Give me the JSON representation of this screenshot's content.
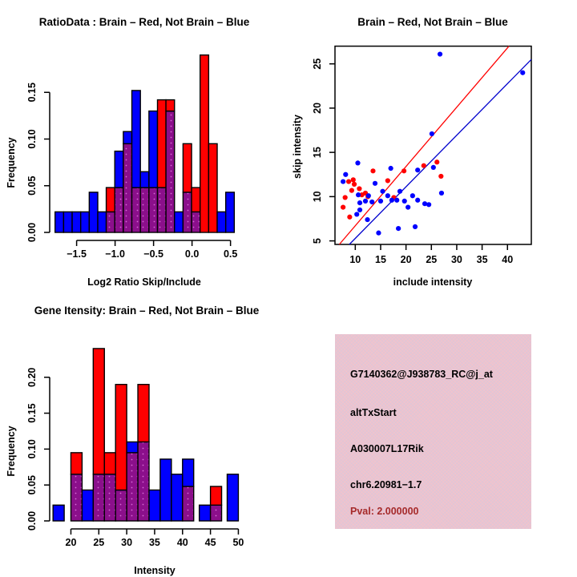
{
  "colors": {
    "red": "#FF0000",
    "blue": "#0000FF",
    "purple": "#8B0F8B",
    "purple_dot": "#D668D6",
    "blue_fit_line": "#0000CD",
    "red_fit_line": "#FF0000",
    "axis": "#000000",
    "info_box_bg": "#F2C3CC",
    "pval_text": "#A52A2A"
  },
  "panels": {
    "top_left": {
      "title": "RatioData : Brain – Red, Not Brain – Blue",
      "xlabel": "Log2 Ratio Skip/Include",
      "ylabel": "Frequency"
    },
    "top_right": {
      "title": "Brain – Red, Not Brain – Blue",
      "xlabel": "include intensity",
      "ylabel": "skip intensity"
    },
    "bottom_left": {
      "title": "Gene Itensity: Brain – Red, Not Brain – Blue",
      "xlabel": "Intensity",
      "ylabel": "Frequency"
    },
    "bottom_right": {
      "line1": "G7140362@J938783_RC@j_at",
      "line2": "altTxStart",
      "line3": "A030007L17Rik",
      "line4": "chr6.20981−1.7",
      "line5": "Pval: 2.000000"
    }
  },
  "chart_data": [
    {
      "panel": "tl",
      "type": "histogram",
      "title": "RatioData : Brain – Red, Not Brain – Blue",
      "xlabel": "Log2 Ratio Skip/Include",
      "ylabel": "Frequency",
      "xlim": [
        -1.85,
        0.66
      ],
      "ylim": [
        0,
        0.2
      ],
      "xticks": [
        -1.5,
        -1.0,
        -0.5,
        0.0,
        0.5
      ],
      "xtick_labels": [
        "−1.5",
        "−1.0",
        "−0.5",
        "0.0",
        "0.5"
      ],
      "yticks": [
        0,
        0.05,
        0.1,
        0.15
      ],
      "ytick_labels": [
        "0.00",
        "0.05",
        "0.10",
        "0.15"
      ],
      "grid": false,
      "bin_width": 0.1108,
      "bars": [
        {
          "x0": -1.78,
          "x1": -1.669,
          "c": "blue",
          "h": 0.022,
          "p": 0
        },
        {
          "x0": -1.669,
          "x1": -1.558,
          "c": "blue",
          "h": 0.022,
          "p": 0
        },
        {
          "x0": -1.558,
          "x1": -1.447,
          "c": "blue",
          "h": 0.022,
          "p": 0
        },
        {
          "x0": -1.447,
          "x1": -1.336,
          "c": "blue",
          "h": 0.022,
          "p": 0
        },
        {
          "x0": -1.336,
          "x1": -1.225,
          "c": "blue",
          "h": 0.043,
          "p": 0
        },
        {
          "x0": -1.225,
          "x1": -1.115,
          "c": "blue",
          "h": 0.022,
          "p": 0
        },
        {
          "x0": -1.115,
          "x1": -1.004,
          "c": "red",
          "h": 0.048,
          "p": 0.022
        },
        {
          "x0": -1.004,
          "x1": -0.893,
          "c": "blue",
          "h": 0.087,
          "p": 0.048
        },
        {
          "x0": -0.893,
          "x1": -0.782,
          "c": "blue",
          "h": 0.108,
          "p": 0.095
        },
        {
          "x0": -0.782,
          "x1": -0.671,
          "c": "blue",
          "h": 0.152,
          "p": 0.048
        },
        {
          "x0": -0.671,
          "x1": -0.56,
          "c": "blue",
          "h": 0.065,
          "p": 0.048
        },
        {
          "x0": -0.56,
          "x1": -0.449,
          "c": "blue",
          "h": 0.13,
          "p": 0.048
        },
        {
          "x0": -0.449,
          "x1": -0.339,
          "c": "red",
          "h": 0.142,
          "p": 0.048
        },
        {
          "x0": -0.339,
          "x1": -0.228,
          "c": "red",
          "h": 0.142,
          "p": 0.13
        },
        {
          "x0": -0.228,
          "x1": -0.117,
          "c": "blue",
          "h": 0.022,
          "p": 0
        },
        {
          "x0": -0.117,
          "x1": -0.006,
          "c": "red",
          "h": 0.095,
          "p": 0.043
        },
        {
          "x0": -0.006,
          "x1": 0.105,
          "c": "red",
          "h": 0.048,
          "p": 0.022
        },
        {
          "x0": 0.105,
          "x1": 0.216,
          "c": "red",
          "h": 0.19,
          "p": 0
        },
        {
          "x0": 0.216,
          "x1": 0.327,
          "c": "red",
          "h": 0.095,
          "p": 0
        },
        {
          "x0": 0.327,
          "x1": 0.438,
          "c": "blue",
          "h": 0.022,
          "p": 0
        },
        {
          "x0": 0.438,
          "x1": 0.549,
          "c": "blue",
          "h": 0.043,
          "p": 0
        }
      ]
    },
    {
      "panel": "tr",
      "type": "scatter",
      "title": "Brain – Red, Not Brain – Blue",
      "xlabel": "include intensity",
      "ylabel": "skip intensity",
      "xlim": [
        6,
        44.7
      ],
      "ylim": [
        4.6,
        27.0
      ],
      "xticks": [
        10,
        15,
        20,
        25,
        30,
        35,
        40
      ],
      "xtick_labels": [
        "10",
        "15",
        "20",
        "25",
        "30",
        "35",
        "40"
      ],
      "yticks": [
        5,
        10,
        15,
        20,
        25
      ],
      "ytick_labels": [
        "5",
        "10",
        "15",
        "20",
        "25"
      ],
      "grid": false,
      "series": [
        {
          "name": "brain_red",
          "color": "red",
          "points": [
            [
              13.5,
              12.9
            ],
            [
              19.6,
              12.9
            ],
            [
              26.1,
              13.9
            ],
            [
              23.5,
              13.5
            ],
            [
              26.9,
              12.3
            ],
            [
              16.4,
              11.8
            ],
            [
              9.6,
              11.9
            ],
            [
              8.7,
              11.7
            ],
            [
              9.8,
              11.4
            ],
            [
              11.3,
              10.2
            ],
            [
              10.8,
              10.9
            ],
            [
              9.3,
              10.7
            ],
            [
              12.0,
              10.4
            ],
            [
              12.5,
              10.0
            ],
            [
              8.0,
              9.9
            ],
            [
              17.6,
              9.9
            ],
            [
              7.6,
              8.8
            ],
            [
              8.9,
              7.7
            ]
          ]
        },
        {
          "name": "not_brain_blue",
          "color": "blue",
          "points": [
            [
              26.7,
              26.1
            ],
            [
              43.0,
              24.0
            ],
            [
              25.1,
              17.1
            ],
            [
              10.5,
              13.8
            ],
            [
              17.0,
              13.2
            ],
            [
              22.3,
              13.0
            ],
            [
              25.4,
              13.3
            ],
            [
              8.1,
              12.5
            ],
            [
              7.6,
              11.7
            ],
            [
              13.9,
              11.5
            ],
            [
              15.4,
              10.6
            ],
            [
              18.8,
              10.6
            ],
            [
              10.6,
              10.2
            ],
            [
              12.6,
              10.1
            ],
            [
              16.4,
              10.1
            ],
            [
              21.3,
              10.1
            ],
            [
              27.0,
              10.4
            ],
            [
              12.0,
              9.5
            ],
            [
              13.3,
              9.4
            ],
            [
              10.9,
              9.3
            ],
            [
              15.0,
              9.5
            ],
            [
              17.2,
              9.6
            ],
            [
              18.2,
              9.6
            ],
            [
              19.7,
              9.5
            ],
            [
              22.3,
              9.6
            ],
            [
              23.7,
              9.2
            ],
            [
              24.5,
              9.1
            ],
            [
              20.4,
              8.8
            ],
            [
              10.9,
              8.5
            ],
            [
              10.3,
              8.0
            ],
            [
              12.4,
              7.4
            ],
            [
              14.6,
              5.9
            ],
            [
              18.5,
              6.4
            ],
            [
              21.8,
              6.6
            ]
          ]
        }
      ],
      "fit_lines": [
        {
          "name": "brain_fit",
          "color": "red_fit_line",
          "from": [
            6.85,
            4.6
          ],
          "to": [
            40.3,
            27.0
          ]
        },
        {
          "name": "not_brain_fit",
          "color": "blue_fit_line",
          "from": [
            8.83,
            4.6
          ],
          "to": [
            44.7,
            25.5
          ]
        }
      ]
    },
    {
      "panel": "bl",
      "type": "histogram",
      "title": "Gene Itensity: Brain – Red, Not Brain – Blue",
      "xlabel": "Intensity",
      "ylabel": "Frequency",
      "xlim": [
        16.2,
        50.8
      ],
      "ylim": [
        0,
        0.26
      ],
      "xticks": [
        20,
        25,
        30,
        35,
        40,
        45,
        50
      ],
      "xtick_labels": [
        "20",
        "25",
        "30",
        "35",
        "40",
        "45",
        "50"
      ],
      "yticks": [
        0,
        0.05,
        0.1,
        0.15,
        0.2
      ],
      "ytick_labels": [
        "0.00",
        "0.05",
        "0.10",
        "0.15",
        "0.20"
      ],
      "grid": false,
      "bin_width": 2,
      "bars": [
        {
          "x0": 16.8,
          "x1": 18.8,
          "c": "blue",
          "h": 0.022,
          "p": 0
        },
        {
          "x0": 20,
          "x1": 22,
          "c": "red",
          "h": 0.095,
          "p": 0.065
        },
        {
          "x0": 22,
          "x1": 24,
          "c": "blue",
          "h": 0.043,
          "p": 0
        },
        {
          "x0": 24,
          "x1": 26,
          "c": "red",
          "h": 0.24,
          "p": 0.065
        },
        {
          "x0": 26,
          "x1": 28,
          "c": "red",
          "h": 0.095,
          "p": 0.065
        },
        {
          "x0": 28,
          "x1": 30,
          "c": "red",
          "h": 0.19,
          "p": 0.043
        },
        {
          "x0": 30,
          "x1": 32,
          "c": "blue",
          "h": 0.11,
          "p": 0.095
        },
        {
          "x0": 32,
          "x1": 34,
          "c": "red",
          "h": 0.19,
          "p": 0.11
        },
        {
          "x0": 34,
          "x1": 36,
          "c": "blue",
          "h": 0.043,
          "p": 0
        },
        {
          "x0": 36,
          "x1": 38,
          "c": "blue",
          "h": 0.086,
          "p": 0
        },
        {
          "x0": 38,
          "x1": 40,
          "c": "blue",
          "h": 0.065,
          "p": 0
        },
        {
          "x0": 40,
          "x1": 42,
          "c": "blue",
          "h": 0.086,
          "p": 0.048
        },
        {
          "x0": 43,
          "x1": 45,
          "c": "blue",
          "h": 0.022,
          "p": 0
        },
        {
          "x0": 45,
          "x1": 47,
          "c": "red",
          "h": 0.048,
          "p": 0.022
        },
        {
          "x0": 48,
          "x1": 50,
          "c": "blue",
          "h": 0.065,
          "p": 0
        }
      ]
    }
  ]
}
